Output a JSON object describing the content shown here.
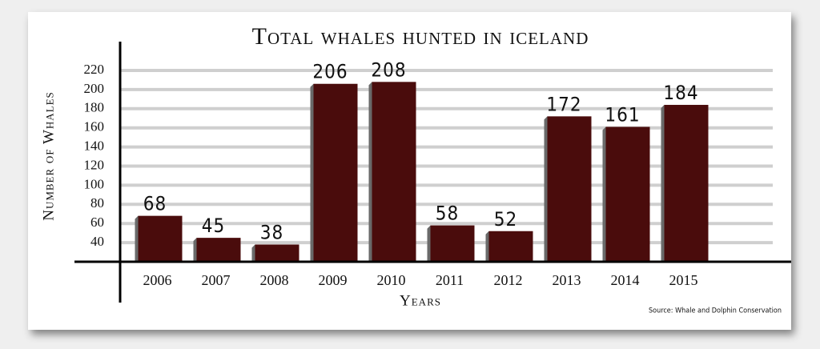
{
  "chart_data": {
    "type": "bar",
    "title": "Total whales hunted in iceland",
    "y_label": "Number of Whales",
    "x_label": "Years",
    "source": "Source: Whale and Dolphin Conservation",
    "categories": [
      "2006",
      "2007",
      "2008",
      "2009",
      "2010",
      "2011",
      "2012",
      "2013",
      "2014",
      "2015"
    ],
    "values": [
      68,
      45,
      38,
      206,
      208,
      58,
      52,
      172,
      161,
      184
    ],
    "color": "#4a0c0c",
    "ylim": [
      20,
      250
    ],
    "yticks": [
      40,
      60,
      80,
      100,
      120,
      140,
      160,
      180,
      200,
      220
    ],
    "grid": true
  }
}
